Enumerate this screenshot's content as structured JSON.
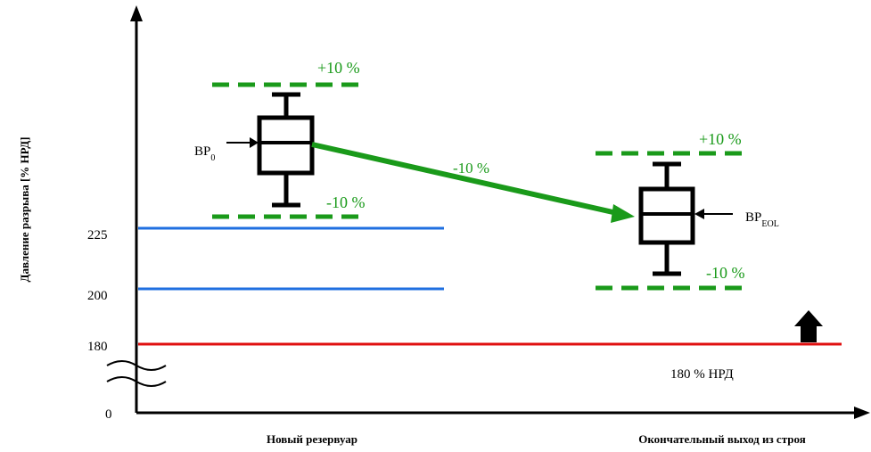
{
  "chart_data": {
    "type": "box",
    "ylabel": "Давление разрыва [% НРД]",
    "y_ticks": [
      "225",
      "200",
      "180",
      "0"
    ],
    "x_categories": [
      "Новый резервуар",
      "Окончательный выход из строя"
    ],
    "reference_lines": [
      {
        "value": 225,
        "color": "#1f6fe0",
        "label": ""
      },
      {
        "value": 200,
        "color": "#1f6fe0",
        "label": ""
      },
      {
        "value": 180,
        "color": "#e01010",
        "label": "180 % НРД"
      }
    ],
    "boxes": [
      {
        "category": "Новый резервуар",
        "label_main": "BP",
        "label_sub": "0",
        "band_upper": "+10 %",
        "band_lower": "-10 %"
      },
      {
        "category": "Окончательный выход из строя",
        "label_main": "BP",
        "label_sub": "EOL",
        "band_upper": "+10 %",
        "band_lower": "-10 %"
      }
    ],
    "trend_label": "-10 %",
    "colors": {
      "band": "#1a9a1a",
      "trend": "#1a9a1a",
      "box": "#000000"
    }
  }
}
